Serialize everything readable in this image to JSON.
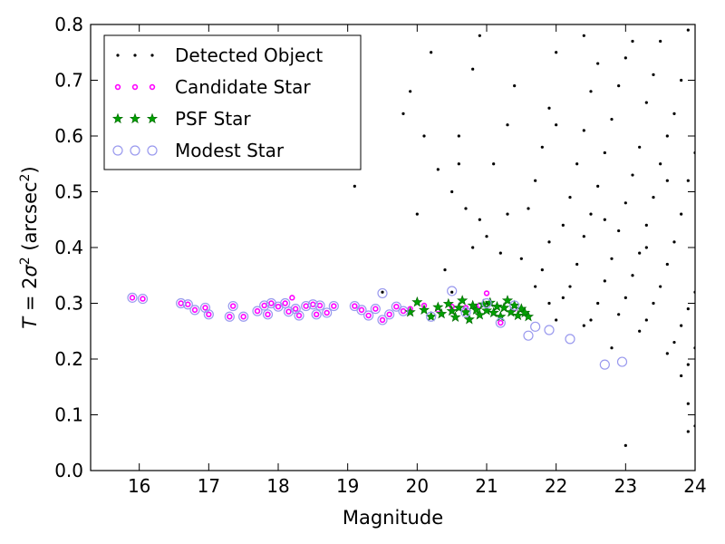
{
  "chart_data": {
    "type": "scatter",
    "xlabel": "Magnitude",
    "ylabel_parts": {
      "lhs": "T",
      "eq": " = 2",
      "sigma": "σ",
      "sup2": "2",
      "open": " (arcsec",
      "close": ")"
    },
    "xlim": [
      15.3,
      24
    ],
    "ylim": [
      0.0,
      0.8
    ],
    "xticks": [
      "16",
      "17",
      "18",
      "19",
      "20",
      "21",
      "22",
      "23",
      "24"
    ],
    "yticks": [
      "0.0",
      "0.1",
      "0.2",
      "0.3",
      "0.4",
      "0.5",
      "0.6",
      "0.7",
      "0.8"
    ],
    "legend_position": "top-left",
    "grid": false,
    "series": [
      {
        "name": "Detected Object",
        "marker": "dot",
        "color": "#000000",
        "points": [
          [
            19.1,
            0.51
          ],
          [
            19.5,
            0.32
          ],
          [
            20.5,
            0.32
          ],
          [
            21.0,
            0.3
          ],
          [
            19.8,
            0.64
          ],
          [
            20.1,
            0.6
          ],
          [
            20.3,
            0.54
          ],
          [
            20.5,
            0.5
          ],
          [
            20.7,
            0.47
          ],
          [
            20.9,
            0.45
          ],
          [
            21.0,
            0.42
          ],
          [
            21.2,
            0.39
          ],
          [
            21.1,
            0.55
          ],
          [
            21.3,
            0.62
          ],
          [
            21.4,
            0.69
          ],
          [
            20.8,
            0.72
          ],
          [
            20.9,
            0.78
          ],
          [
            20.6,
            0.6
          ],
          [
            21.5,
            0.38
          ],
          [
            21.6,
            0.47
          ],
          [
            21.7,
            0.52
          ],
          [
            21.8,
            0.58
          ],
          [
            21.9,
            0.65
          ],
          [
            22.0,
            0.75
          ],
          [
            21.7,
            0.33
          ],
          [
            21.8,
            0.36
          ],
          [
            21.9,
            0.41
          ],
          [
            22.1,
            0.44
          ],
          [
            22.2,
            0.49
          ],
          [
            22.3,
            0.55
          ],
          [
            22.4,
            0.61
          ],
          [
            22.5,
            0.68
          ],
          [
            22.6,
            0.73
          ],
          [
            22.2,
            0.33
          ],
          [
            22.3,
            0.37
          ],
          [
            22.4,
            0.42
          ],
          [
            22.5,
            0.46
          ],
          [
            22.6,
            0.51
          ],
          [
            22.7,
            0.57
          ],
          [
            22.8,
            0.63
          ],
          [
            22.9,
            0.69
          ],
          [
            23.0,
            0.74
          ],
          [
            22.6,
            0.3
          ],
          [
            22.7,
            0.34
          ],
          [
            22.8,
            0.38
          ],
          [
            22.9,
            0.43
          ],
          [
            23.0,
            0.48
          ],
          [
            23.1,
            0.53
          ],
          [
            23.2,
            0.58
          ],
          [
            23.3,
            0.66
          ],
          [
            23.4,
            0.71
          ],
          [
            23.5,
            0.77
          ],
          [
            22.9,
            0.28
          ],
          [
            23.0,
            0.31
          ],
          [
            23.1,
            0.35
          ],
          [
            23.2,
            0.39
          ],
          [
            23.3,
            0.44
          ],
          [
            23.4,
            0.49
          ],
          [
            23.5,
            0.55
          ],
          [
            23.6,
            0.6
          ],
          [
            23.7,
            0.64
          ],
          [
            23.8,
            0.7
          ],
          [
            23.9,
            0.79
          ],
          [
            23.2,
            0.25
          ],
          [
            23.3,
            0.27
          ],
          [
            23.4,
            0.3
          ],
          [
            23.5,
            0.33
          ],
          [
            23.6,
            0.37
          ],
          [
            23.7,
            0.41
          ],
          [
            23.8,
            0.46
          ],
          [
            23.9,
            0.52
          ],
          [
            24.0,
            0.57
          ],
          [
            23.6,
            0.21
          ],
          [
            23.7,
            0.23
          ],
          [
            23.8,
            0.26
          ],
          [
            23.9,
            0.29
          ],
          [
            24.0,
            0.32
          ],
          [
            23.8,
            0.17
          ],
          [
            23.9,
            0.19
          ],
          [
            24.0,
            0.22
          ],
          [
            23.9,
            0.12
          ],
          [
            24.0,
            0.08
          ],
          [
            23.9,
            0.07
          ],
          [
            23.0,
            0.045
          ],
          [
            22.8,
            0.22
          ],
          [
            22.4,
            0.26
          ],
          [
            22.0,
            0.27
          ],
          [
            21.9,
            0.3
          ],
          [
            22.1,
            0.31
          ],
          [
            22.5,
            0.27
          ],
          [
            21.3,
            0.46
          ],
          [
            20.8,
            0.4
          ],
          [
            20.6,
            0.55
          ],
          [
            20.4,
            0.36
          ],
          [
            20.0,
            0.46
          ],
          [
            19.9,
            0.68
          ],
          [
            20.2,
            0.75
          ],
          [
            22.4,
            0.78
          ],
          [
            23.1,
            0.77
          ],
          [
            22.0,
            0.62
          ],
          [
            22.7,
            0.45
          ],
          [
            23.6,
            0.52
          ],
          [
            23.3,
            0.4
          ]
        ]
      },
      {
        "name": "Candidate Star",
        "marker": "circle",
        "color": "#ff00ff",
        "points": [
          [
            15.9,
            0.31
          ],
          [
            16.05,
            0.308
          ],
          [
            16.6,
            0.3
          ],
          [
            16.7,
            0.298
          ],
          [
            16.8,
            0.288
          ],
          [
            16.95,
            0.292
          ],
          [
            17.0,
            0.28
          ],
          [
            17.3,
            0.276
          ],
          [
            17.35,
            0.295
          ],
          [
            17.5,
            0.276
          ],
          [
            17.7,
            0.286
          ],
          [
            17.8,
            0.296
          ],
          [
            17.85,
            0.28
          ],
          [
            17.9,
            0.3
          ],
          [
            18.0,
            0.294
          ],
          [
            18.1,
            0.3
          ],
          [
            18.15,
            0.285
          ],
          [
            18.2,
            0.31
          ],
          [
            18.25,
            0.29
          ],
          [
            18.3,
            0.278
          ],
          [
            18.4,
            0.295
          ],
          [
            18.5,
            0.298
          ],
          [
            18.55,
            0.28
          ],
          [
            18.6,
            0.296
          ],
          [
            18.7,
            0.283
          ],
          [
            18.8,
            0.295
          ],
          [
            19.1,
            0.295
          ],
          [
            19.2,
            0.288
          ],
          [
            19.3,
            0.278
          ],
          [
            19.4,
            0.29
          ],
          [
            19.5,
            0.27
          ],
          [
            19.6,
            0.28
          ],
          [
            19.7,
            0.294
          ],
          [
            19.8,
            0.286
          ],
          [
            19.9,
            0.29
          ],
          [
            20.1,
            0.296
          ],
          [
            20.3,
            0.288
          ],
          [
            20.5,
            0.294
          ],
          [
            20.7,
            0.292
          ],
          [
            20.9,
            0.296
          ],
          [
            21.0,
            0.318
          ],
          [
            21.2,
            0.265
          ],
          [
            21.4,
            0.29
          ]
        ]
      },
      {
        "name": "PSF Star",
        "marker": "star",
        "color": "#00a000",
        "points": [
          [
            19.9,
            0.284
          ],
          [
            20.0,
            0.302
          ],
          [
            20.1,
            0.288
          ],
          [
            20.2,
            0.276
          ],
          [
            20.3,
            0.293
          ],
          [
            20.35,
            0.281
          ],
          [
            20.45,
            0.299
          ],
          [
            20.5,
            0.286
          ],
          [
            20.55,
            0.275
          ],
          [
            20.6,
            0.292
          ],
          [
            20.65,
            0.305
          ],
          [
            20.7,
            0.284
          ],
          [
            20.75,
            0.271
          ],
          [
            20.8,
            0.296
          ],
          [
            20.85,
            0.288
          ],
          [
            20.9,
            0.279
          ],
          [
            20.95,
            0.298
          ],
          [
            21.0,
            0.287
          ],
          [
            21.05,
            0.301
          ],
          [
            21.1,
            0.283
          ],
          [
            21.15,
            0.294
          ],
          [
            21.2,
            0.276
          ],
          [
            21.25,
            0.292
          ],
          [
            21.3,
            0.305
          ],
          [
            21.35,
            0.284
          ],
          [
            21.4,
            0.296
          ],
          [
            21.45,
            0.278
          ],
          [
            21.5,
            0.29
          ],
          [
            21.55,
            0.283
          ],
          [
            21.6,
            0.276
          ]
        ]
      },
      {
        "name": "Modest Star",
        "marker": "ring",
        "color": "#9999ee",
        "points": [
          [
            15.9,
            0.31
          ],
          [
            16.05,
            0.308
          ],
          [
            16.6,
            0.3
          ],
          [
            16.7,
            0.298
          ],
          [
            16.8,
            0.288
          ],
          [
            16.95,
            0.292
          ],
          [
            17.0,
            0.28
          ],
          [
            17.3,
            0.276
          ],
          [
            17.35,
            0.295
          ],
          [
            17.5,
            0.276
          ],
          [
            17.7,
            0.286
          ],
          [
            17.8,
            0.296
          ],
          [
            17.85,
            0.28
          ],
          [
            17.9,
            0.3
          ],
          [
            18.0,
            0.294
          ],
          [
            18.1,
            0.3
          ],
          [
            18.15,
            0.285
          ],
          [
            18.25,
            0.29
          ],
          [
            18.3,
            0.278
          ],
          [
            18.4,
            0.295
          ],
          [
            18.5,
            0.298
          ],
          [
            18.55,
            0.28
          ],
          [
            18.6,
            0.296
          ],
          [
            18.7,
            0.283
          ],
          [
            18.8,
            0.295
          ],
          [
            19.1,
            0.295
          ],
          [
            19.2,
            0.288
          ],
          [
            19.3,
            0.278
          ],
          [
            19.4,
            0.29
          ],
          [
            19.5,
            0.27
          ],
          [
            19.6,
            0.28
          ],
          [
            19.7,
            0.294
          ],
          [
            19.8,
            0.286
          ],
          [
            19.5,
            0.318
          ],
          [
            20.5,
            0.322
          ],
          [
            21.0,
            0.3
          ],
          [
            21.2,
            0.265
          ],
          [
            21.6,
            0.242
          ],
          [
            21.7,
            0.258
          ],
          [
            21.9,
            0.252
          ],
          [
            22.2,
            0.236
          ],
          [
            22.7,
            0.19
          ],
          [
            22.95,
            0.195
          ],
          [
            20.2,
            0.276
          ],
          [
            20.7,
            0.284
          ],
          [
            21.4,
            0.296
          ]
        ]
      }
    ]
  }
}
